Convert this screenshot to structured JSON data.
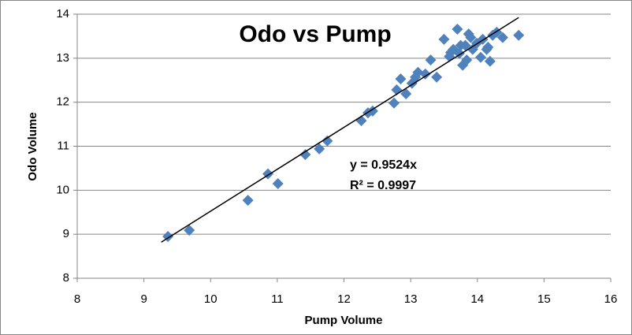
{
  "chart_data": {
    "type": "scatter",
    "title": "Odo vs Pump",
    "x_label": "Pump Volume",
    "y_label": "Odo Volume",
    "xlim": [
      8,
      16
    ],
    "xticks": [
      8,
      9,
      10,
      11,
      12,
      13,
      14,
      15,
      16
    ],
    "ylim": [
      8,
      14
    ],
    "yticks": [
      8,
      9,
      10,
      11,
      12,
      13,
      14
    ],
    "grid": true,
    "series": [
      {
        "color": "#4f81bd",
        "x": [
          9.36,
          9.68,
          10.56,
          10.86,
          11.01,
          11.42,
          11.63,
          11.75,
          12.26,
          12.36,
          12.43,
          12.75,
          12.79,
          12.85,
          12.93,
          13.02,
          13.07,
          13.11,
          13.22,
          13.3,
          13.39,
          13.5,
          13.58,
          13.64,
          13.7,
          13.73,
          13.78,
          13.82,
          13.84,
          13.87,
          13.93,
          13.99,
          14.05,
          14.08,
          14.14,
          14.19,
          14.23,
          14.29,
          14.38,
          14.62,
          13.6,
          13.75,
          13.9,
          14.16
        ],
        "values": [
          8.95,
          9.09,
          9.77,
          10.37,
          10.15,
          10.81,
          10.94,
          11.12,
          11.58,
          11.76,
          11.8,
          11.98,
          12.28,
          12.53,
          12.19,
          12.43,
          12.57,
          12.68,
          12.64,
          12.96,
          12.57,
          13.43,
          13.04,
          13.2,
          13.66,
          13.11,
          12.84,
          13.29,
          12.96,
          13.55,
          13.2,
          13.34,
          13.02,
          13.43,
          13.2,
          12.93,
          13.52,
          13.59,
          13.47,
          13.52,
          13.13,
          13.29,
          13.47,
          13.25
        ]
      }
    ],
    "trendline": {
      "slope": 0.9524,
      "x_start": 9.26,
      "x_end": 14.62,
      "color": "#000000",
      "equation": "y = 0.9524x",
      "r_squared": "R² = 0.9997"
    }
  }
}
